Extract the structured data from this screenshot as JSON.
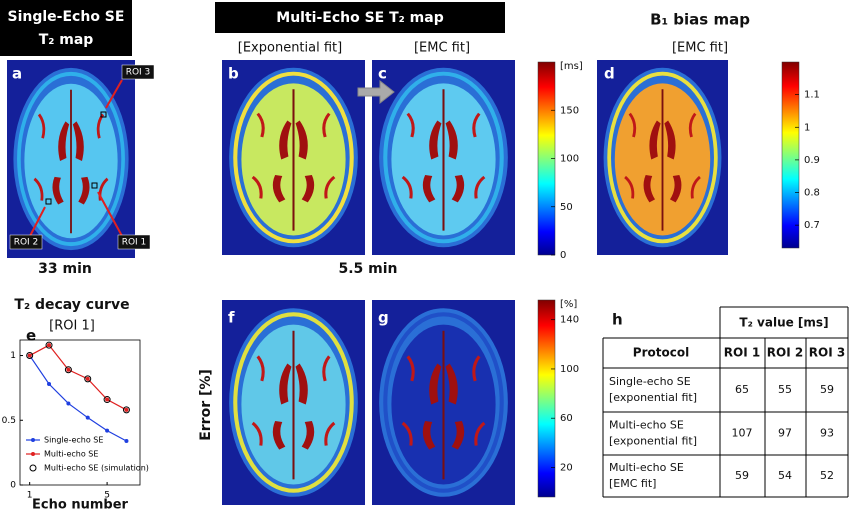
{
  "panel_labels": [
    "a",
    "b",
    "c",
    "d",
    "e",
    "f",
    "g",
    "h"
  ],
  "headers": {
    "single_echo": [
      "Single-Echo SE",
      "T₂ map"
    ],
    "multi_echo": "Multi-Echo SE  T₂ map",
    "b1": "B₁ bias map"
  },
  "fits": [
    "[Exponential fit]",
    "[EMC fit]",
    "[EMC fit]"
  ],
  "rois": [
    "ROI 3",
    "ROI 2",
    "ROI 1"
  ],
  "times": [
    "33 min",
    "5.5 min"
  ],
  "error_label": "Error  [%]",
  "colorbars": [
    {
      "unit": "[ms]",
      "lim": [
        0,
        200
      ],
      "ticks": [
        0,
        50,
        100,
        150
      ]
    },
    {
      "lim": [
        0.63,
        1.2
      ],
      "ticks": [
        0.7,
        0.8,
        0.9,
        1,
        1.1
      ]
    },
    {
      "unit": "[%]",
      "lim": [
        -4,
        156
      ],
      "ticks": [
        20,
        60,
        100,
        140
      ]
    }
  ],
  "chart_data": {
    "type": "line",
    "title": "T₂ decay curve",
    "subtitle": "[ROI 1]",
    "x_label": "Echo number",
    "x": [
      1,
      2,
      3,
      4,
      5,
      6
    ],
    "xlim": [
      0.5,
      6.7
    ],
    "ylim": [
      0,
      1.12
    ],
    "xticks": [
      1,
      5
    ],
    "yticks": [
      0,
      0.5,
      1
    ],
    "legend": "lower left",
    "series": [
      {
        "name": "Single-echo SE",
        "color": "#1f3fe0",
        "marker": "dot",
        "line": true,
        "values": [
          1,
          0.78,
          0.63,
          0.52,
          0.42,
          0.34
        ]
      },
      {
        "name": "Multi-echo SE",
        "color": "#e02020",
        "marker": "dot",
        "line": true,
        "values": [
          1,
          1.08,
          0.89,
          0.82,
          0.66,
          0.58
        ]
      },
      {
        "name": "Multi-echo SE (simulation)",
        "color": "#000000",
        "marker": "open-circle",
        "line": false,
        "values": [
          1,
          1.08,
          0.89,
          0.82,
          0.66,
          0.58
        ]
      }
    ]
  },
  "table": {
    "title": "T₂ value  [ms]",
    "header": [
      "Protocol",
      "ROI 1",
      "ROI 2",
      "ROI 3"
    ],
    "rows": [
      [
        [
          "Single-echo SE",
          "[exponential fit]"
        ],
        65,
        55,
        59
      ],
      [
        [
          "Multi-echo SE",
          "[exponential fit]"
        ],
        107,
        97,
        93
      ],
      [
        [
          "Multi-echo SE",
          "[EMC fit]"
        ],
        59,
        54,
        52
      ]
    ]
  }
}
